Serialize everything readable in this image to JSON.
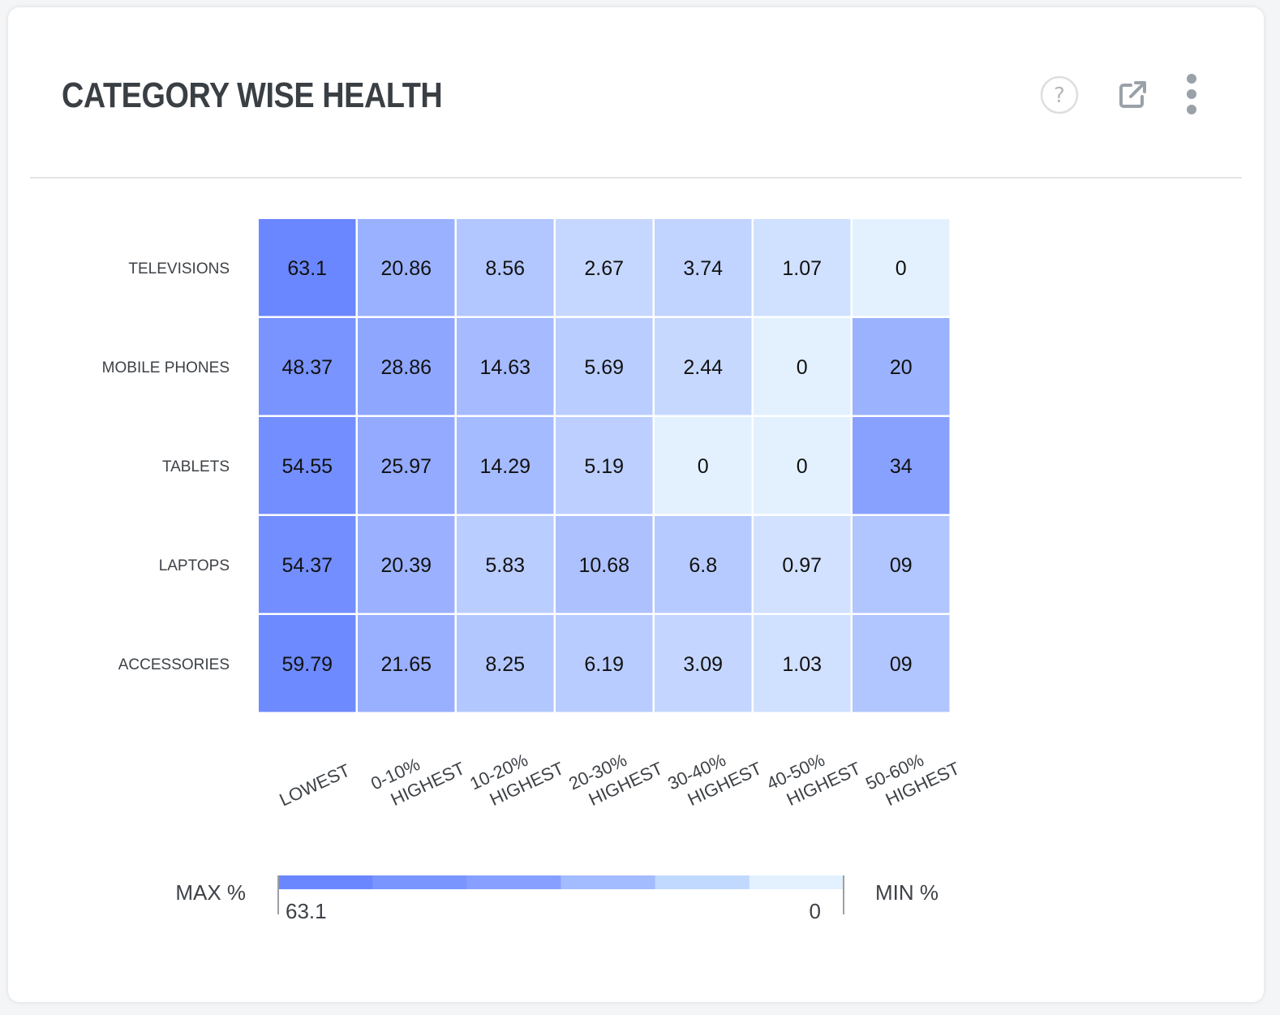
{
  "widget": {
    "title": "CATEGORY WISE HEALTH",
    "icons": {
      "help": "help-circle-icon",
      "popout": "external-link-icon",
      "menu": "more-vertical-icon"
    }
  },
  "chart_data": {
    "type": "heatmap",
    "title": "",
    "xlabel": "",
    "ylabel": "",
    "rows": [
      "TELEVISIONS",
      "MOBILE PHONES",
      "TABLETS",
      "LAPTOPS",
      "ACCESSORIES"
    ],
    "columns": [
      [
        "LOWEST"
      ],
      [
        "0-10%",
        "HIGHEST"
      ],
      [
        "10-20%",
        "HIGHEST"
      ],
      [
        "20-30%",
        "HIGHEST"
      ],
      [
        "30-40%",
        "HIGHEST"
      ],
      [
        "40-50%",
        "HIGHEST"
      ],
      [
        "50-60%",
        "HIGHEST"
      ]
    ],
    "values": [
      [
        "63.1",
        "20.86",
        "8.56",
        "2.67",
        "3.74",
        "1.07",
        "0"
      ],
      [
        "48.37",
        "28.86",
        "14.63",
        "5.69",
        "2.44",
        "0",
        "20"
      ],
      [
        "54.55",
        "25.97",
        "14.29",
        "5.19",
        "0",
        "0",
        "34"
      ],
      [
        "54.37",
        "20.39",
        "5.83",
        "10.68",
        "6.8",
        "0.97",
        "09"
      ],
      [
        "59.79",
        "21.65",
        "8.25",
        "6.19",
        "3.09",
        "1.03",
        "09"
      ]
    ],
    "legend": {
      "max_label": "MAX %",
      "min_label": "MIN %",
      "max_value": "63.1",
      "min_value": "0",
      "steps": [
        "#6b87ff",
        "#7b95ff",
        "#87a0ff",
        "#a3bcff",
        "#c1d9ff",
        "#e3f1ff"
      ]
    },
    "color_scale": {
      "max_color": "#6b87ff",
      "min_color": "#e3f1ff"
    }
  }
}
